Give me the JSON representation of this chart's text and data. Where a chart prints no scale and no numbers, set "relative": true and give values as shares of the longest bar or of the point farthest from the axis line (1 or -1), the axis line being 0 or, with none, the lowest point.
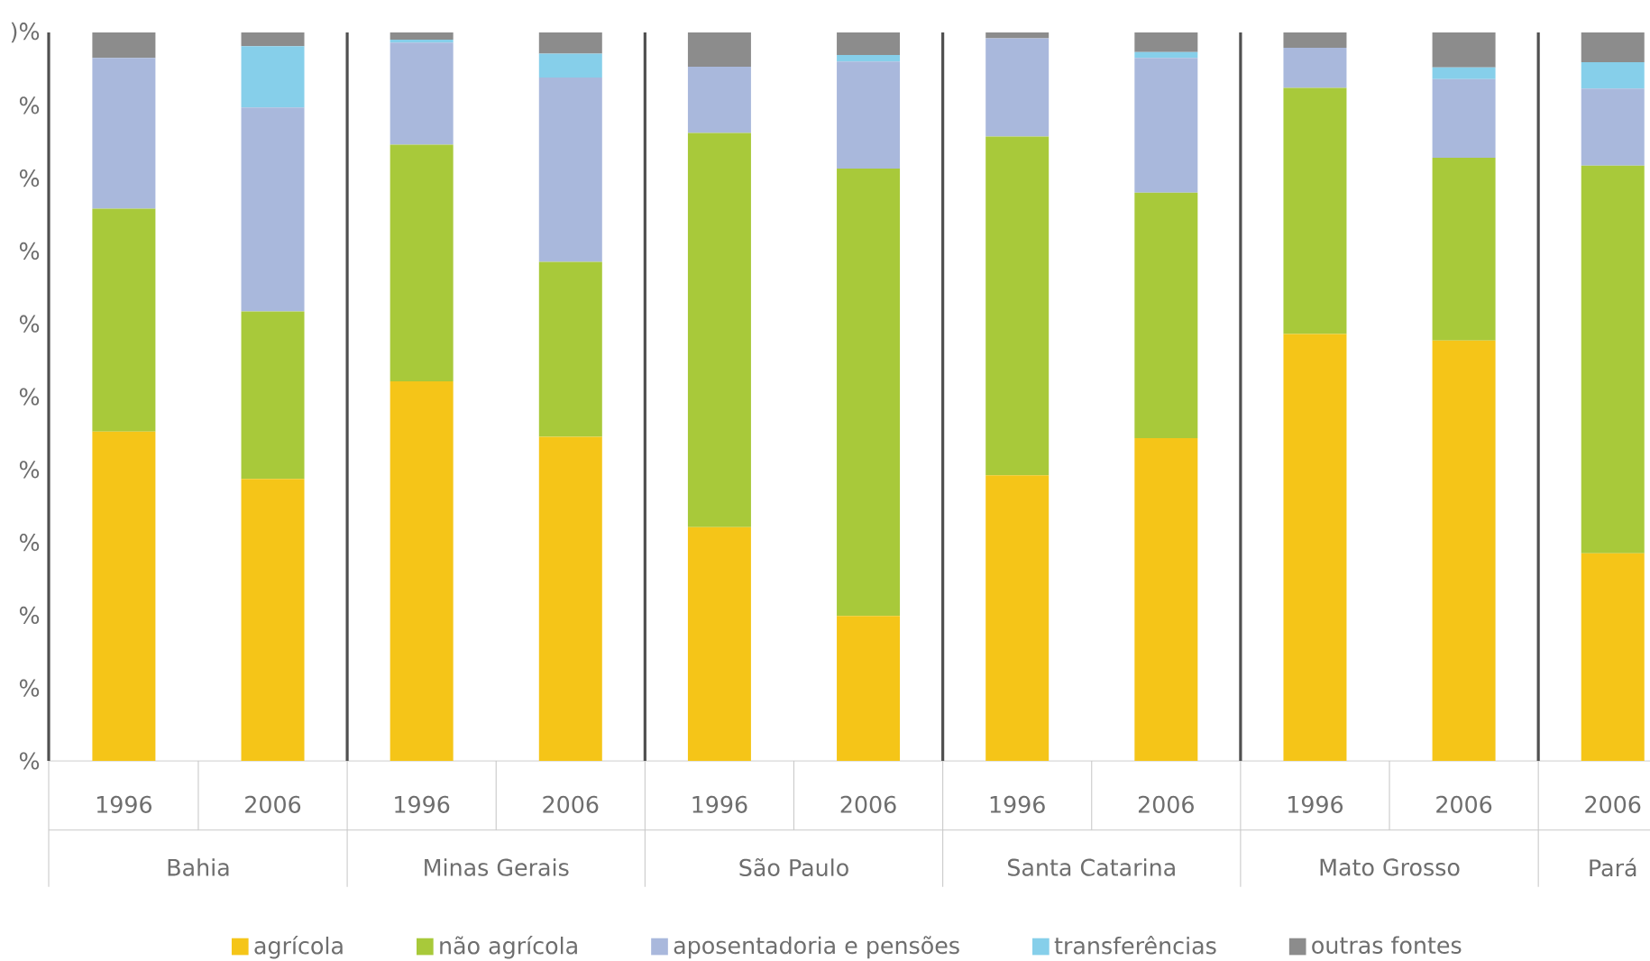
{
  "chart_data": {
    "type": "bar",
    "stacked": true,
    "relative": true,
    "categories": [
      "1996",
      "2006",
      "1996",
      "2006",
      "1996",
      "2006",
      "1996",
      "2006",
      "1996",
      "2006",
      "2006"
    ],
    "annotations": [
      "Bahia",
      "Minas Gerais",
      "São Paulo",
      "Santa Catarina",
      "Mato Grosso",
      "Pará",
      "%",
      "%",
      "%",
      "%",
      "%",
      "%",
      "%",
      "%",
      "%",
      "%",
      ")%"
    ],
    "series": [
      {
        "name": "agrícola",
        "color": "#f5c518",
        "values": [
          0.452,
          0.387,
          0.521,
          0.445,
          0.321,
          0.199,
          0.392,
          0.443,
          0.586,
          0.577,
          0.285
        ]
      },
      {
        "name": "não agrícola",
        "color": "#a8c93a",
        "values": [
          0.306,
          0.23,
          0.325,
          0.24,
          0.541,
          0.614,
          0.465,
          0.337,
          0.338,
          0.251,
          0.532
        ]
      },
      {
        "name": "aposentadoria e pensões",
        "color": "#a9b8dc",
        "values": [
          0.207,
          0.28,
          0.14,
          0.253,
          0.091,
          0.147,
          0.135,
          0.185,
          0.055,
          0.108,
          0.106
        ]
      },
      {
        "name": "transferências",
        "color": "#86cfea",
        "values": [
          0,
          0.084,
          0.004,
          0.033,
          0,
          0.009,
          0,
          0.008,
          0,
          0.016,
          0.036
        ]
      },
      {
        "name": "outras fontes",
        "color": "#8c8c8c",
        "values": [
          0.035,
          0.019,
          0.01,
          0.029,
          0.047,
          0.031,
          0.008,
          0.027,
          0.021,
          0.048,
          0.041
        ]
      }
    ],
    "legend": "bottom"
  }
}
